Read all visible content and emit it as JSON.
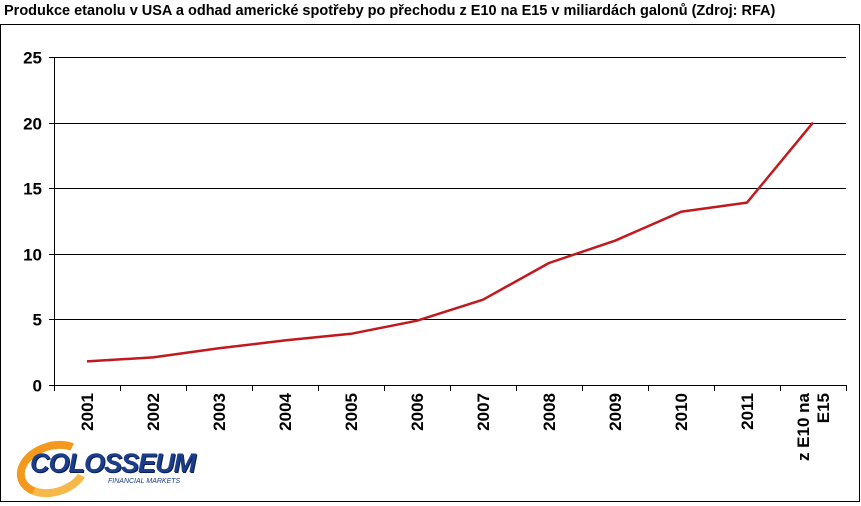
{
  "chart_data": {
    "type": "line",
    "title": "Produkce etanolu v USA a odhad americké spotřeby po přechodu z E10 na E15 v miliardách galonů (Zdroj: RFA)",
    "categories": [
      "2001",
      "2002",
      "2003",
      "2004",
      "2005",
      "2006",
      "2007",
      "2008",
      "2009",
      "2010",
      "2011",
      "z E10 na E15"
    ],
    "category_lines": [
      [
        "2001"
      ],
      [
        "2002"
      ],
      [
        "2003"
      ],
      [
        "2004"
      ],
      [
        "2005"
      ],
      [
        "2006"
      ],
      [
        "2007"
      ],
      [
        "2008"
      ],
      [
        "2009"
      ],
      [
        "2010"
      ],
      [
        "2011"
      ],
      [
        "z E10 na",
        "E15"
      ]
    ],
    "series": [
      {
        "values": [
          1.8,
          2.1,
          2.8,
          3.4,
          3.9,
          4.9,
          6.5,
          9.3,
          11.0,
          13.2,
          13.9,
          20.0
        ],
        "color": "#c0191e"
      }
    ],
    "ylim": [
      0,
      25
    ],
    "yticks": [
      "0",
      "5",
      "10",
      "15",
      "20",
      "25"
    ],
    "grid": true,
    "legend": "none",
    "x_label_orientation": "vertical"
  },
  "logo": {
    "text": "COLOSSEUM",
    "subtext": "FINANCIAL MARKETS"
  }
}
